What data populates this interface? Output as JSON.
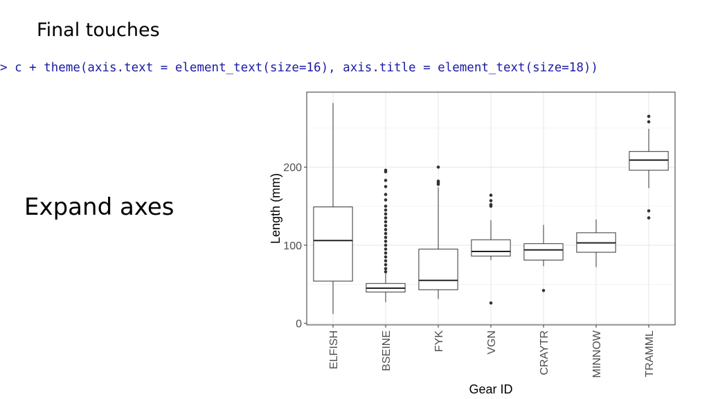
{
  "slide": {
    "title": "Final touches",
    "code": "> c + theme(axis.text = element_text(size=16), axis.title = element_text(size=18))",
    "caption": "Expand axes"
  },
  "chart_data": {
    "type": "boxplot",
    "x_label": "Gear ID",
    "y_label": "Length (mm)",
    "categories": [
      "ELFISH",
      "BSEINE",
      "FYK",
      "VGN",
      "CRAYTR",
      "MINNOW",
      "TRAMML"
    ],
    "boxes": [
      {
        "whislo": 12,
        "q1": 54,
        "med": 106,
        "q3": 149,
        "whishi": 282,
        "fliers": []
      },
      {
        "whislo": 27,
        "q1": 40,
        "med": 45,
        "q3": 51,
        "whishi": 64,
        "fliers": [
          66,
          70,
          75,
          80,
          85,
          90,
          95,
          100,
          105,
          110,
          115,
          120,
          125,
          130,
          135,
          140,
          145,
          150,
          158,
          165,
          175,
          183,
          194,
          196
        ]
      },
      {
        "whislo": 31,
        "q1": 43,
        "med": 55,
        "q3": 95,
        "whishi": 174,
        "fliers": [
          178,
          180,
          182,
          200
        ]
      },
      {
        "whislo": 81,
        "q1": 86,
        "med": 92,
        "q3": 107,
        "whishi": 132,
        "fliers": [
          26,
          150,
          152,
          157,
          164
        ]
      },
      {
        "whislo": 73,
        "q1": 81,
        "med": 94,
        "q3": 102,
        "whishi": 126,
        "fliers": [
          42
        ]
      },
      {
        "whislo": 72,
        "q1": 91,
        "med": 103,
        "q3": 116,
        "whishi": 133,
        "fliers": []
      },
      {
        "whislo": 173,
        "q1": 196,
        "med": 209,
        "q3": 220,
        "whishi": 249,
        "fliers": [
          135,
          144,
          258,
          265
        ]
      }
    ],
    "ylim": [
      -2,
      296
    ],
    "yticks": [
      0,
      100,
      200
    ],
    "minor_yticks": [
      50,
      150,
      250
    ],
    "grid": true
  }
}
